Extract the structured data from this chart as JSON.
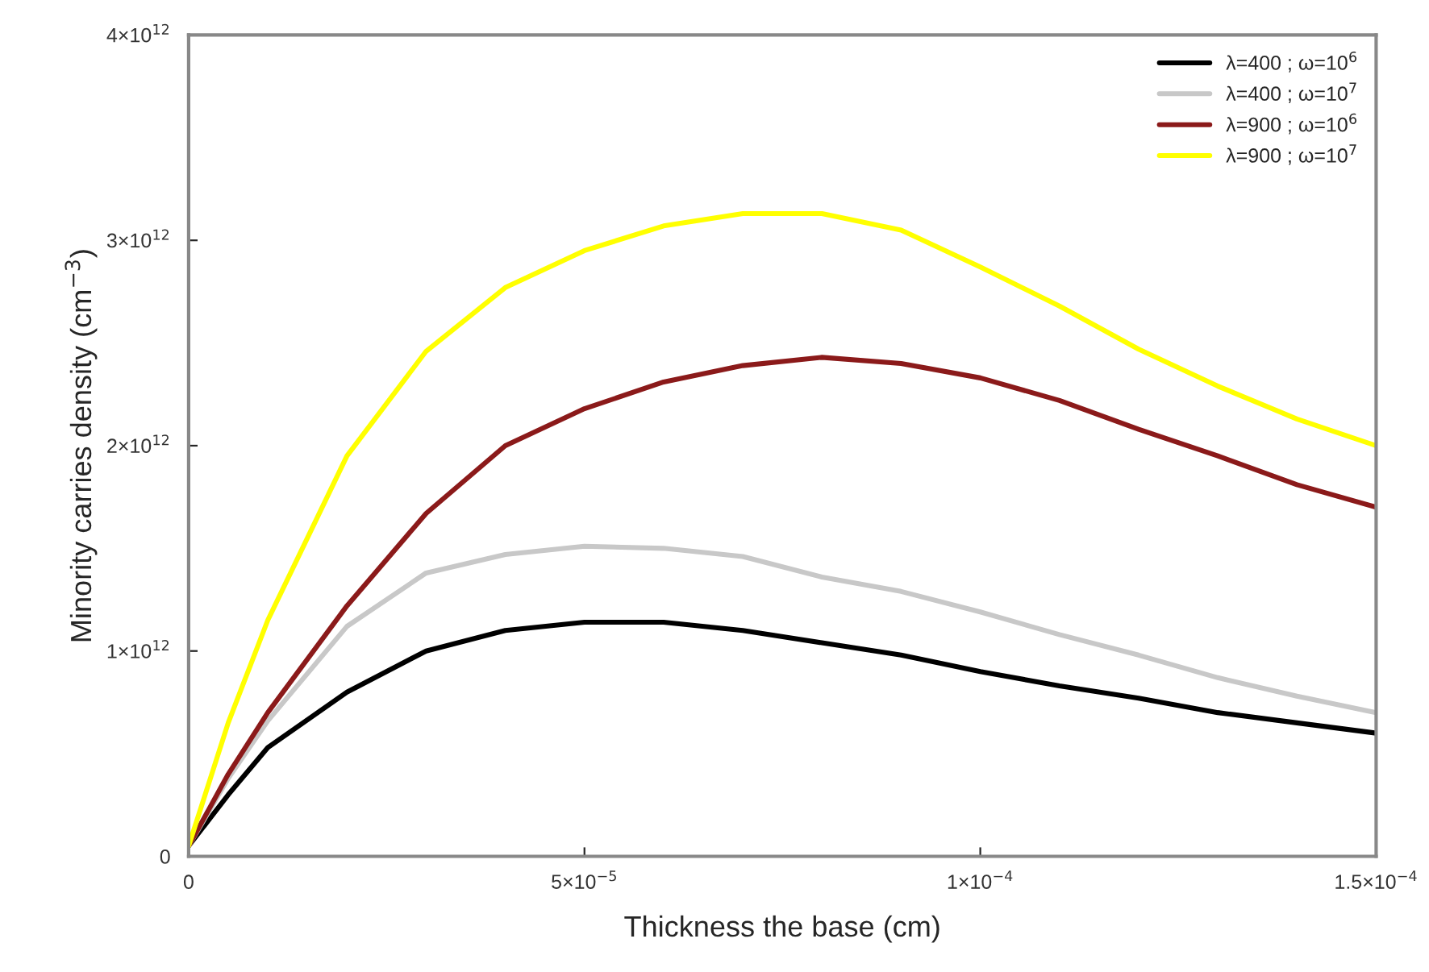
{
  "chart_data": {
    "type": "line",
    "xlabel": "Thickness the base (cm)",
    "ylabel": "Minority carries density (cm$^{−3}$)",
    "xlim": [
      0,
      0.00015
    ],
    "ylim": [
      0,
      4000000000000.0
    ],
    "xticks": [
      {
        "value": 0,
        "label": "0"
      },
      {
        "value": 5e-05,
        "label": "5×10$^{−5}$"
      },
      {
        "value": 0.0001,
        "label": "1×10$^{−4}$"
      },
      {
        "value": 0.00015,
        "label": "1.5×10$^{−4}$"
      }
    ],
    "yticks": [
      {
        "value": 0,
        "label": "0"
      },
      {
        "value": 1000000000000.0,
        "label": "1×10$^{12}$"
      },
      {
        "value": 2000000000000.0,
        "label": "2×10$^{12}$"
      },
      {
        "value": 3000000000000.0,
        "label": "3×10$^{12}$"
      },
      {
        "value": 4000000000000.0,
        "label": "4×10$^{12}$"
      }
    ],
    "x": [
      0,
      5e-06,
      1e-05,
      2e-05,
      3e-05,
      4e-05,
      5e-05,
      6e-05,
      7e-05,
      8e-05,
      9e-05,
      0.0001,
      0.00011,
      0.00012,
      0.00013,
      0.00014,
      0.00015
    ],
    "series": [
      {
        "name": "λ=400 ; ω=10$^{6}$",
        "color": "#000000",
        "values": [
          50000000000.0,
          300000000000.0,
          530000000000.0,
          800000000000.0,
          1000000000000.0,
          1100000000000.0,
          1140000000000.0,
          1140000000000.0,
          1100000000000.0,
          1040000000000.0,
          980000000000.0,
          900000000000.0,
          830000000000.0,
          770000000000.0,
          700000000000.0,
          650000000000.0,
          600000000000.0
        ]
      },
      {
        "name": "λ=400 ; ω=10$^{7}$",
        "color": "#c8c8c8",
        "values": [
          50000000000.0,
          380000000000.0,
          660000000000.0,
          1120000000000.0,
          1380000000000.0,
          1470000000000.0,
          1510000000000.0,
          1500000000000.0,
          1460000000000.0,
          1360000000000.0,
          1290000000000.0,
          1190000000000.0,
          1080000000000.0,
          980000000000.0,
          870000000000.0,
          780000000000.0,
          700000000000.0
        ]
      },
      {
        "name": "λ=900 ; ω=10$^{6}$",
        "color": "#8b1a1a",
        "values": [
          50000000000.0,
          400000000000.0,
          700000000000.0,
          1220000000000.0,
          1670000000000.0,
          2000000000000.0,
          2180000000000.0,
          2310000000000.0,
          2390000000000.0,
          2430000000000.0,
          2400000000000.0,
          2330000000000.0,
          2220000000000.0,
          2080000000000.0,
          1950000000000.0,
          1810000000000.0,
          1700000000000.0
        ]
      },
      {
        "name": "λ=900 ; ω=10$^{7}$",
        "color": "#ffff00",
        "values": [
          50000000000.0,
          650000000000.0,
          1150000000000.0,
          1950000000000.0,
          2460000000000.0,
          2770000000000.0,
          2950000000000.0,
          3070000000000.0,
          3130000000000.0,
          3130000000000.0,
          3050000000000.0,
          2870000000000.0,
          2680000000000.0,
          2470000000000.0,
          2290000000000.0,
          2130000000000.0,
          2000000000000.0
        ]
      }
    ],
    "legend": "top right",
    "grid": false
  }
}
